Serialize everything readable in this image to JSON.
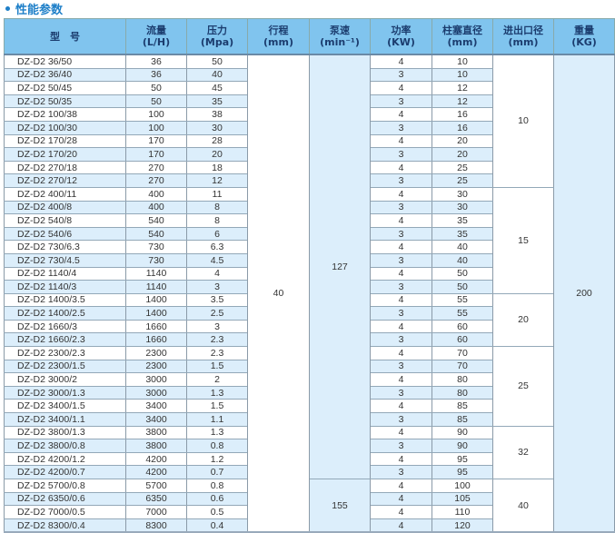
{
  "title": "性能参数",
  "headers": [
    [
      "型　号",
      ""
    ],
    [
      "流量",
      "(L/H)"
    ],
    [
      "压力",
      "(Mpa)"
    ],
    [
      "行程",
      "(mm)"
    ],
    [
      "泵速",
      "(min⁻¹)"
    ],
    [
      "功率",
      "(KW)"
    ],
    [
      "柱塞直径",
      "(mm)"
    ],
    [
      "进出口径",
      "(mm)"
    ],
    [
      "重量",
      "(KG)"
    ]
  ],
  "rows": [
    [
      "DZ-D2 36/50",
      "36",
      "50",
      "4",
      "10"
    ],
    [
      "DZ-D2 36/40",
      "36",
      "40",
      "3",
      "10"
    ],
    [
      "DZ-D2 50/45",
      "50",
      "45",
      "4",
      "12"
    ],
    [
      "DZ-D2 50/35",
      "50",
      "35",
      "3",
      "12"
    ],
    [
      "DZ-D2 100/38",
      "100",
      "38",
      "4",
      "16"
    ],
    [
      "DZ-D2 100/30",
      "100",
      "30",
      "3",
      "16"
    ],
    [
      "DZ-D2 170/28",
      "170",
      "28",
      "4",
      "20"
    ],
    [
      "DZ-D2 170/20",
      "170",
      "20",
      "3",
      "20"
    ],
    [
      "DZ-D2 270/18",
      "270",
      "18",
      "4",
      "25"
    ],
    [
      "DZ-D2 270/12",
      "270",
      "12",
      "3",
      "25"
    ],
    [
      "DZ-D2 400/11",
      "400",
      "11",
      "4",
      "30"
    ],
    [
      "DZ-D2 400/8",
      "400",
      "8",
      "3",
      "30"
    ],
    [
      "DZ-D2 540/8",
      "540",
      "8",
      "4",
      "35"
    ],
    [
      "DZ-D2 540/6",
      "540",
      "6",
      "3",
      "35"
    ],
    [
      "DZ-D2 730/6.3",
      "730",
      "6.3",
      "4",
      "40"
    ],
    [
      "DZ-D2 730/4.5",
      "730",
      "4.5",
      "3",
      "40"
    ],
    [
      "DZ-D2 1140/4",
      "1140",
      "4",
      "4",
      "50"
    ],
    [
      "DZ-D2 1140/3",
      "1140",
      "3",
      "3",
      "50"
    ],
    [
      "DZ-D2 1400/3.5",
      "1400",
      "3.5",
      "4",
      "55"
    ],
    [
      "DZ-D2 1400/2.5",
      "1400",
      "2.5",
      "3",
      "55"
    ],
    [
      "DZ-D2 1660/3",
      "1660",
      "3",
      "4",
      "60"
    ],
    [
      "DZ-D2 1660/2.3",
      "1660",
      "2.3",
      "3",
      "60"
    ],
    [
      "DZ-D2 2300/2.3",
      "2300",
      "2.3",
      "4",
      "70"
    ],
    [
      "DZ-D2 2300/1.5",
      "2300",
      "1.5",
      "3",
      "70"
    ],
    [
      "DZ-D2 3000/2",
      "3000",
      "2",
      "4",
      "80"
    ],
    [
      "DZ-D2 3000/1.3",
      "3000",
      "1.3",
      "3",
      "80"
    ],
    [
      "DZ-D2 3400/1.5",
      "3400",
      "1.5",
      "4",
      "85"
    ],
    [
      "DZ-D2 3400/1.1",
      "3400",
      "1.1",
      "3",
      "85"
    ],
    [
      "DZ-D2 3800/1.3",
      "3800",
      "1.3",
      "4",
      "90"
    ],
    [
      "DZ-D2 3800/0.8",
      "3800",
      "0.8",
      "3",
      "90"
    ],
    [
      "DZ-D2 4200/1.2",
      "4200",
      "1.2",
      "4",
      "95"
    ],
    [
      "DZ-D2 4200/0.7",
      "4200",
      "0.7",
      "3",
      "95"
    ],
    [
      "DZ-D2 5700/0.8",
      "5700",
      "0.8",
      "4",
      "100"
    ],
    [
      "DZ-D2 6350/0.6",
      "6350",
      "0.6",
      "4",
      "105"
    ],
    [
      "DZ-D2 7000/0.5",
      "7000",
      "0.5",
      "4",
      "110"
    ],
    [
      "DZ-D2 8300/0.4",
      "8300",
      "0.4",
      "4",
      "120"
    ]
  ],
  "stroke": [
    {
      "value": "40",
      "rows": 36
    }
  ],
  "pump_speed": [
    {
      "value": "127",
      "rows": 32
    },
    {
      "value": "155",
      "rows": 4
    }
  ],
  "port_size": [
    {
      "value": "10",
      "rows": 10
    },
    {
      "value": "15",
      "rows": 8
    },
    {
      "value": "20",
      "rows": 4
    },
    {
      "value": "25",
      "rows": 6
    },
    {
      "value": "32",
      "rows": 4
    },
    {
      "value": "40",
      "rows": 4
    }
  ],
  "weight": [
    {
      "value": "200",
      "rows": 36
    }
  ],
  "colors": {
    "header": "#80c4ee",
    "stripe": "#dceefb",
    "title": "#1e7fc8"
  }
}
